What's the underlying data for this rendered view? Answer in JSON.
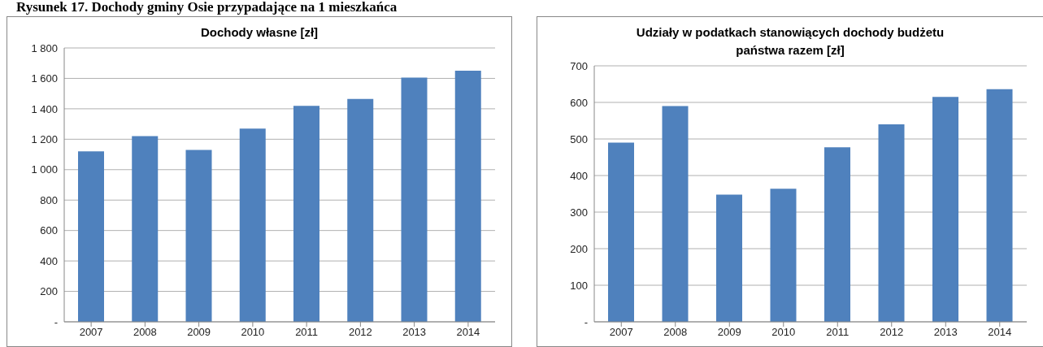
{
  "chart_data": [
    {
      "type": "bar",
      "title": "Dochody własne [zł]",
      "annotations": [
        "Rysunek 17. Dochody gminy Osie przypadające na 1 mieszkańca"
      ],
      "categories": [
        "2007",
        "2008",
        "2009",
        "2010",
        "2011",
        "2012",
        "2013",
        "2014"
      ],
      "values": [
        1120,
        1220,
        1130,
        1270,
        1420,
        1465,
        1605,
        1650
      ],
      "color": "#4f81bd",
      "ylim": [
        0,
        1800
      ],
      "yticks": [
        {
          "value": 0,
          "label": "-"
        },
        200,
        400,
        600,
        800,
        {
          "value": 1000,
          "label": "1 000"
        },
        {
          "value": 1200,
          "label": "1 200"
        },
        {
          "value": 1400,
          "label": "1 400"
        },
        {
          "value": 1600,
          "label": "1 600"
        },
        {
          "value": 1800,
          "label": "1 800"
        }
      ],
      "grid": "y",
      "legend": false
    },
    {
      "type": "bar",
      "title": "Udziały w podatkach stanowiących dochody budżetu\npaństwa razem [zł]",
      "categories": [
        "2007",
        "2008",
        "2009",
        "2010",
        "2011",
        "2012",
        "2013",
        "2014"
      ],
      "values": [
        490,
        590,
        348,
        364,
        477,
        540,
        615,
        636
      ],
      "color": "#4f81bd",
      "ylim": [
        0,
        700
      ],
      "yticks": [
        {
          "value": 0,
          "label": "-"
        },
        100,
        200,
        300,
        400,
        500,
        600,
        700
      ],
      "grid": "y",
      "legend": false
    }
  ]
}
